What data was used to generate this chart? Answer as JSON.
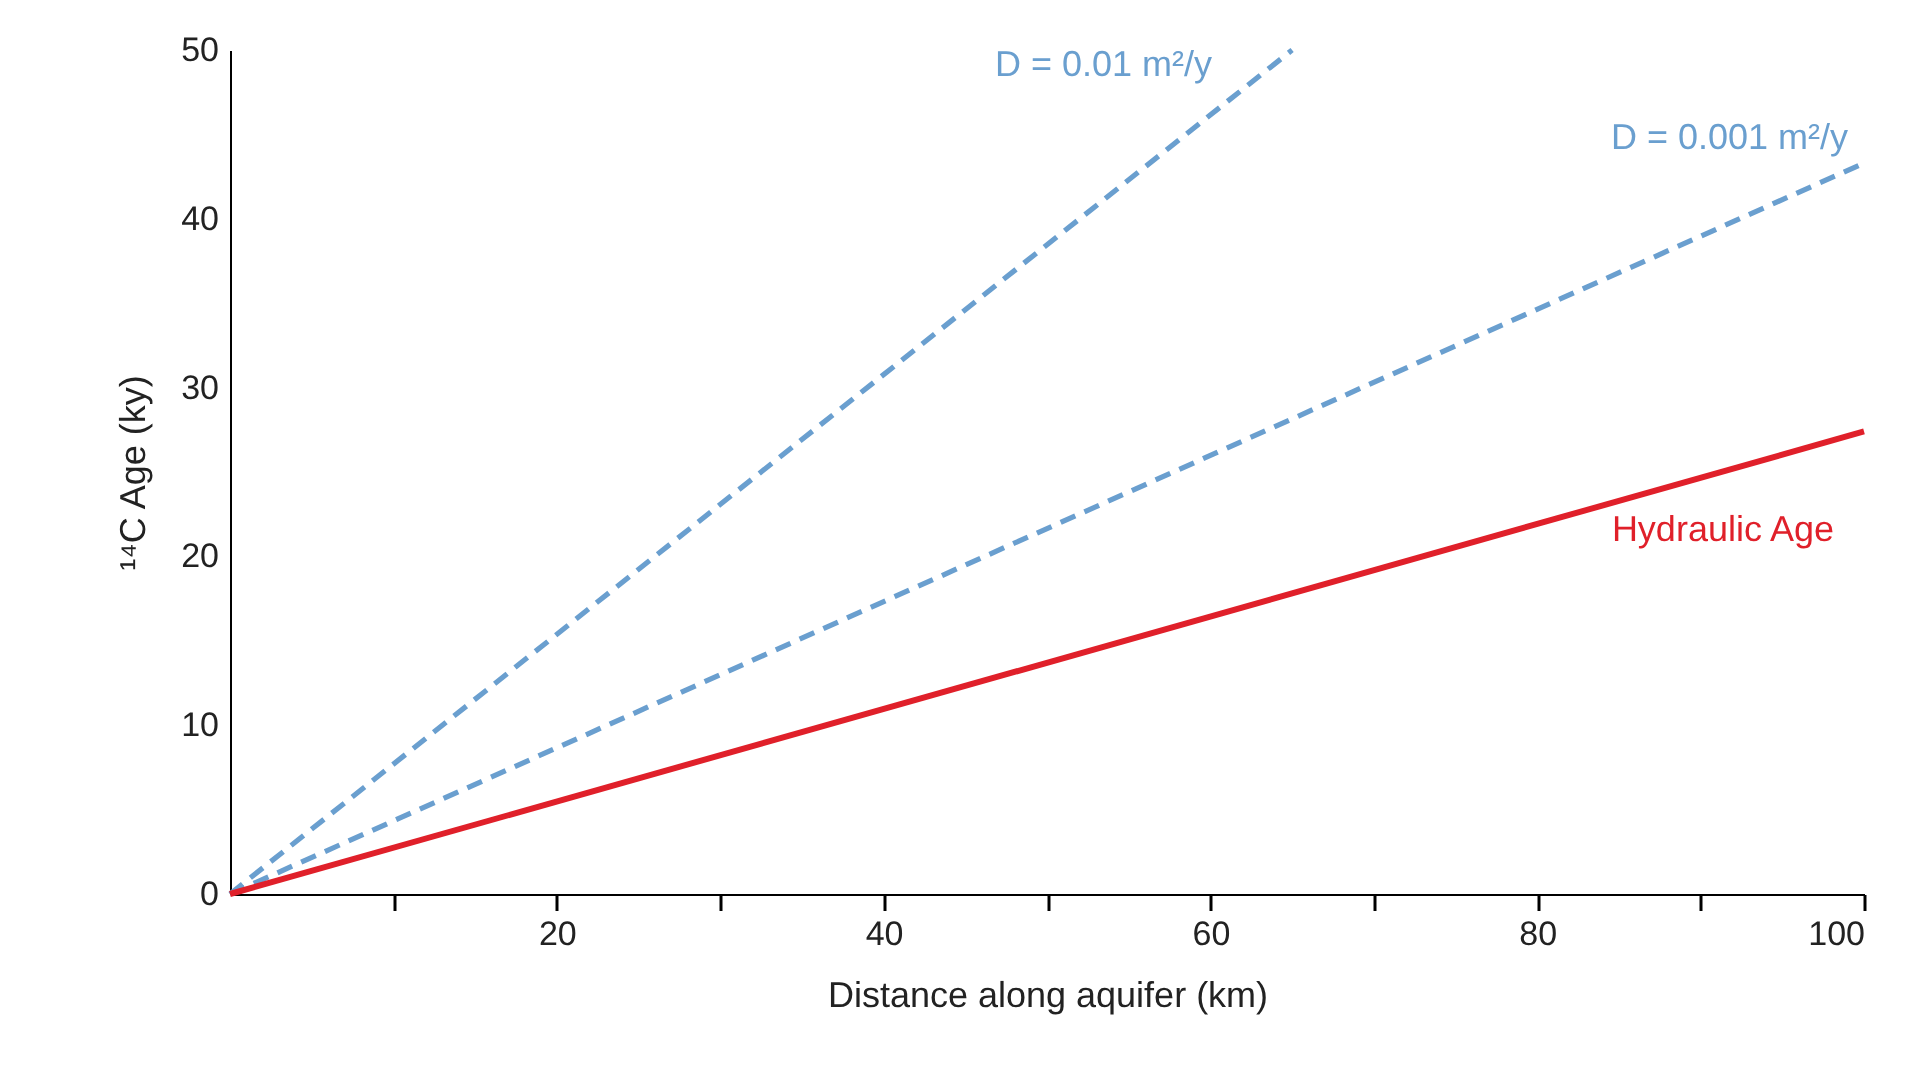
{
  "chart_data": {
    "type": "line",
    "xlabel": "Distance along aquifer (km)",
    "ylabel": "¹⁴C Age (ky)",
    "xlim": [
      0,
      100
    ],
    "xticks": [
      {
        "value": 10,
        "label": null
      },
      20,
      {
        "value": 30,
        "label": null
      },
      40,
      {
        "value": 50,
        "label": null
      },
      60,
      {
        "value": 70,
        "label": null
      },
      80,
      {
        "value": 90,
        "label": null
      },
      100
    ],
    "ylim": [
      0,
      50
    ],
    "yticks": [
      0,
      10,
      20,
      30,
      40,
      50
    ],
    "grid": false,
    "legend": false,
    "marker": "none",
    "series": [
      {
        "name": "D = 0.01 m²/y",
        "color": "#6a9fcf",
        "line_style": "dashed",
        "x": [
          0,
          65
        ],
        "values": [
          0,
          50
        ]
      },
      {
        "name": "D = 0.001 m²/y",
        "color": "#6a9fcf",
        "line_style": "dashed",
        "x": [
          0,
          100
        ],
        "values": [
          0,
          43.3
        ]
      },
      {
        "name": "Hydraulic Age",
        "color": "#e0202a",
        "line_style": "solid",
        "x": [
          0,
          100
        ],
        "values": [
          0,
          27.4
        ]
      }
    ]
  }
}
